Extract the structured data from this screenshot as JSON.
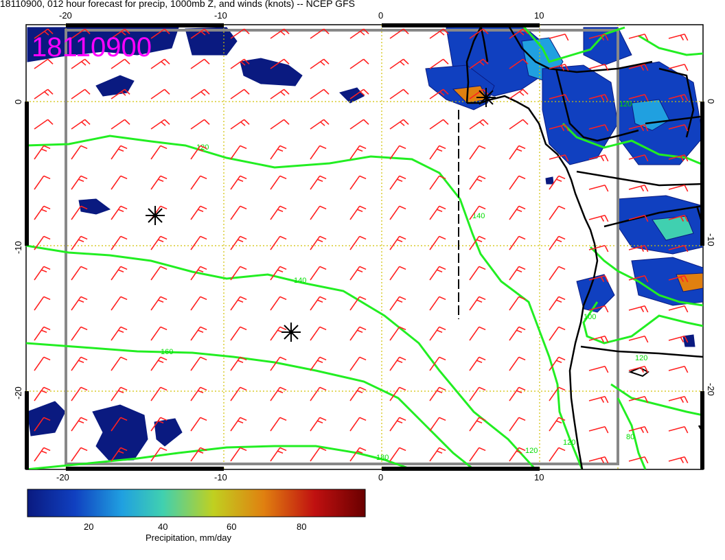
{
  "title": "18110900, 012 hour forecast for precip, 1000mb Z, and winds (knots) -- NCEP GFS",
  "date_stamp": "18110900",
  "x_axis": {
    "ticks": [
      "-20",
      "-10",
      "0",
      "10"
    ]
  },
  "y_axis": {
    "ticks": [
      "0",
      "-10",
      "-20"
    ]
  },
  "contours": {
    "color": "#00ee00",
    "values": [
      "120",
      "140",
      "160",
      "180",
      "120",
      "140",
      "120",
      "120",
      "100",
      "120",
      "80"
    ]
  },
  "colorbar": {
    "label": "Precipitation, mm/day",
    "ticks": [
      "20",
      "40",
      "60",
      "80"
    ],
    "colors": [
      "#0a1a80",
      "#1040c0",
      "#20a0e0",
      "#40d0b0",
      "#c0d020",
      "#e08010",
      "#c01010",
      "#6a0000"
    ]
  },
  "wind_barb_color": "#ff2020",
  "grid_color": "#d0c000"
}
